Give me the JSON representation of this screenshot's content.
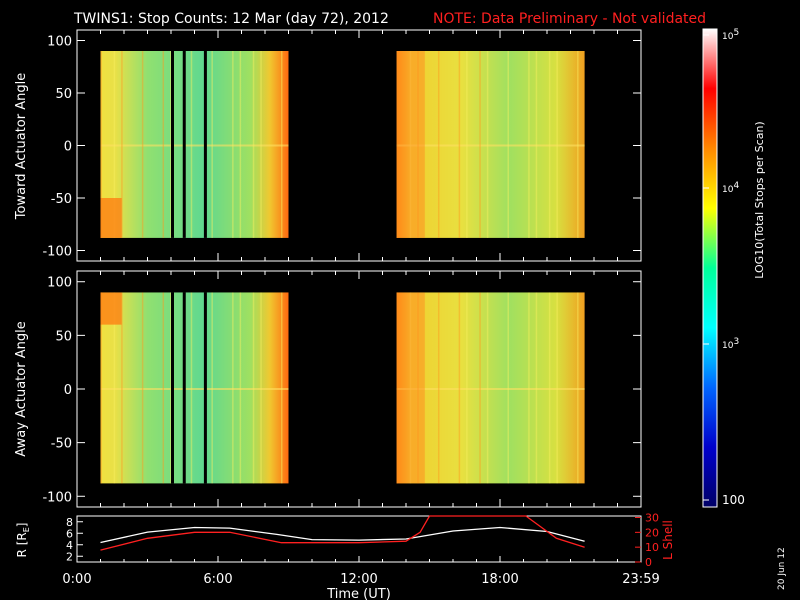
{
  "header": {
    "title": "TWINS1: Stop Counts: 12 Mar (day  72), 2012",
    "note": "NOTE: Data Preliminary - Not validated"
  },
  "date_stamp": "20 Jun 12",
  "chart_data": [
    {
      "type": "heatmap",
      "panel": "top",
      "ylabel": "Toward Actuator Angle",
      "ylim": [
        -110,
        110
      ],
      "yticks": [
        "100",
        "50",
        "0",
        "-50",
        "-100"
      ],
      "data_coverage_ut_hours": [
        [
          1.0,
          9.0
        ],
        [
          13.6,
          21.6
        ]
      ],
      "data_gaps_ut_hours": [
        4.0,
        4.5,
        5.4
      ],
      "angle_range": [
        -88,
        90
      ]
    },
    {
      "type": "heatmap",
      "panel": "middle",
      "ylabel": "Away Actuator Angle",
      "ylim": [
        -110,
        110
      ],
      "yticks": [
        "100",
        "50",
        "0",
        "-50",
        "-100"
      ],
      "data_coverage_ut_hours": [
        [
          1.0,
          9.0
        ],
        [
          13.6,
          21.6
        ]
      ],
      "data_gaps_ut_hours": [
        4.0,
        4.5,
        5.4
      ],
      "angle_range": [
        -88,
        90
      ]
    },
    {
      "type": "line",
      "panel": "bottom",
      "ylabel_left": "R [R",
      "ylabel_left_sub": "E",
      "ylabel_left_end": "]",
      "ylabel_right": "L Shell",
      "yticks_left": [
        "8",
        "6",
        "4",
        "2"
      ],
      "yticks_right": [
        "30",
        "20",
        "10",
        "0"
      ],
      "xlabel": "Time (UT)",
      "xticks": [
        "0:00",
        "6:00",
        "12:00",
        "18:00",
        "23:59"
      ],
      "series": [
        {
          "name": "R",
          "color": "#ffffff",
          "x": [
            1.0,
            3.0,
            5.0,
            6.5,
            8.5,
            10.0,
            12.0,
            14.0,
            16.0,
            18.0,
            20.0,
            21.6
          ],
          "y": [
            4.4,
            6.2,
            7.0,
            6.9,
            5.8,
            4.9,
            4.8,
            5.0,
            6.4,
            7.0,
            6.3,
            4.6
          ]
        },
        {
          "name": "L Shell",
          "color": "#ff2020",
          "x": [
            1.0,
            3.0,
            5.0,
            6.5,
            8.7,
            10.0,
            12.0,
            14.0,
            14.6,
            15.0,
            19.1,
            20.4,
            21.6
          ],
          "y": [
            8,
            16,
            20,
            20,
            13,
            13,
            13,
            14,
            20,
            33,
            33,
            16,
            10
          ]
        }
      ]
    }
  ],
  "colorbar": {
    "label": "LOG10(Total Stops per Scan)",
    "tick_labels": [
      "10",
      "10",
      "10",
      "100"
    ],
    "tick_exponents": [
      "5",
      "4",
      "3",
      ""
    ],
    "stops": [
      "#ffffff",
      "#ff0000",
      "#ff8800",
      "#ffff00",
      "#00ff99",
      "#00ffff",
      "#0066ff",
      "#0000cc",
      "#000066"
    ]
  }
}
